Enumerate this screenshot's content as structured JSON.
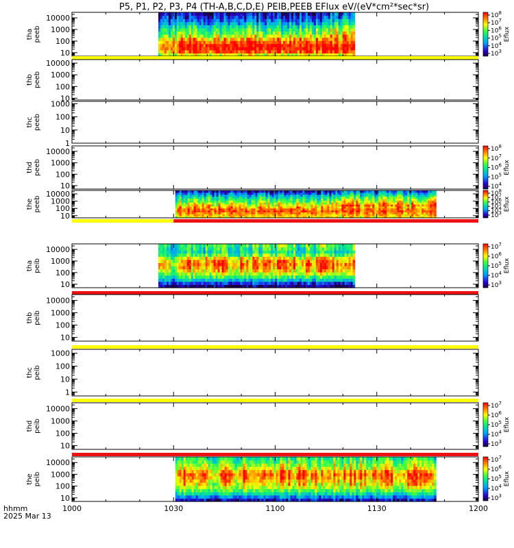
{
  "title": "P5, P1, P2, P3, P4 (TH-A,B,C,D,E) PEIB,PEEB EFlux eV/(eV*cm²*sec*sr)",
  "x_axis": {
    "range_minutes": [
      600,
      720
    ],
    "ticks": [
      {
        "label": "1000",
        "t": 600
      },
      {
        "label": "1030",
        "t": 630
      },
      {
        "label": "1100",
        "t": 660
      },
      {
        "label": "1130",
        "t": 690
      },
      {
        "label": "1200",
        "t": 720
      }
    ],
    "corner_label_1": "hhmm",
    "corner_label_2": "2025 Mar 13"
  },
  "colors": {
    "bar_red": "#ee1111",
    "bar_yellow": "#ffff00",
    "axis": "#000000"
  },
  "chart_data": [
    {
      "type": "heatmap",
      "probe": "tha",
      "species": "peeb",
      "ylabel": [
        "tha",
        "peeb"
      ],
      "ylog": true,
      "ylim": [
        5,
        30000
      ],
      "yticks": [
        "10",
        "100",
        "1000",
        "10000"
      ],
      "data_range_minutes": [
        625.5,
        683.5
      ],
      "profile": "electron_a",
      "colorbar": {
        "label": "Eflux",
        "exps": [
          "3",
          "4",
          "5",
          "6",
          "7",
          "8"
        ]
      },
      "bar": {
        "color": "yellow",
        "segments": [
          [
            600,
            720
          ]
        ]
      }
    },
    {
      "type": "heatmap",
      "probe": "thb",
      "species": "peeb",
      "ylabel": [
        "thb",
        "peeb"
      ],
      "ylog": true,
      "ylim": [
        7,
        20000
      ],
      "yticks": [
        "10",
        "100",
        "1000",
        "10000"
      ],
      "data_range_minutes": null,
      "profile": null,
      "colorbar": null,
      "bar": null
    },
    {
      "type": "heatmap",
      "probe": "thc",
      "species": "peeb",
      "ylabel": [
        "thc",
        "peeb"
      ],
      "ylog": true,
      "ylim": [
        1,
        1500
      ],
      "yticks": [
        "1",
        "10",
        "100",
        "1000"
      ],
      "data_range_minutes": null,
      "profile": null,
      "colorbar": null,
      "bar": null
    },
    {
      "type": "heatmap",
      "probe": "thd",
      "species": "peeb",
      "ylabel": [
        "thd",
        "peeb"
      ],
      "ylog": true,
      "ylim": [
        5,
        30000
      ],
      "yticks": [
        "10",
        "100",
        "1000",
        "10000"
      ],
      "data_range_minutes": null,
      "profile": null,
      "colorbar": {
        "label": "Eflux",
        "exps": [
          "4",
          "5",
          "6",
          "7",
          "8"
        ]
      },
      "bar": null
    },
    {
      "type": "heatmap",
      "probe": "the",
      "species": "peeb",
      "ylabel": [
        "the",
        "peeb"
      ],
      "ylog": true,
      "ylim": [
        5,
        30000
      ],
      "yticks": [
        "10",
        "100",
        "1000",
        "10000"
      ],
      "data_range_minutes": [
        630.5,
        707.5
      ],
      "profile": "electron_e",
      "colorbar": {
        "label": "Eflux",
        "exps": [
          "3",
          "4",
          "5",
          "6",
          "7",
          "8"
        ]
      },
      "bar": {
        "color": "yellow+red",
        "segments": [
          [
            600,
            630
          ],
          [
            630,
            720
          ]
        ]
      }
    },
    {
      "type": "heatmap",
      "probe": "tha",
      "species": "peib",
      "ylabel": [
        "tha",
        "peib"
      ],
      "ylog": true,
      "ylim": [
        5,
        30000
      ],
      "yticks": [
        "10",
        "100",
        "1000",
        "10000"
      ],
      "data_range_minutes": [
        625.5,
        683.5
      ],
      "profile": "ion_a",
      "colorbar": {
        "label": "Eflux",
        "exps": [
          "3",
          "4",
          "5",
          "6",
          "7"
        ]
      },
      "bar": {
        "color": "red",
        "segments": [
          [
            600,
            720
          ]
        ]
      }
    },
    {
      "type": "heatmap",
      "probe": "thb",
      "species": "peib",
      "ylabel": [
        "thb",
        "peib"
      ],
      "ylog": true,
      "ylim": [
        5,
        30000
      ],
      "yticks": [
        "10",
        "100",
        "1000",
        "10000"
      ],
      "data_range_minutes": null,
      "profile": null,
      "colorbar": null,
      "bar": {
        "color": "yellow",
        "segments": [
          [
            600,
            720
          ]
        ]
      }
    },
    {
      "type": "heatmap",
      "probe": "thc",
      "species": "peib",
      "ylabel": [
        "thc",
        "peib"
      ],
      "ylog": true,
      "ylim": [
        0.5,
        2000
      ],
      "yticks": [
        "1",
        "10",
        "100",
        "1000"
      ],
      "data_range_minutes": null,
      "profile": null,
      "colorbar": null,
      "bar": {
        "color": "yellow",
        "segments": [
          [
            600,
            720
          ]
        ]
      }
    },
    {
      "type": "heatmap",
      "probe": "thd",
      "species": "peib",
      "ylabel": [
        "thd",
        "peib"
      ],
      "ylog": true,
      "ylim": [
        5,
        30000
      ],
      "yticks": [
        "10",
        "100",
        "1000",
        "10000"
      ],
      "data_range_minutes": null,
      "profile": null,
      "colorbar": {
        "label": "Eflux",
        "exps": [
          "3",
          "4",
          "5",
          "6",
          "7"
        ]
      },
      "bar": {
        "color": "red",
        "segments": [
          [
            600,
            720
          ]
        ]
      }
    },
    {
      "type": "heatmap",
      "probe": "the",
      "species": "peib",
      "ylabel": [
        "the",
        "peib"
      ],
      "ylog": true,
      "ylim": [
        5,
        30000
      ],
      "yticks": [
        "10",
        "100",
        "1000",
        "10000"
      ],
      "data_range_minutes": [
        630.5,
        707.5
      ],
      "profile": "ion_e",
      "colorbar": {
        "label": "Eflux",
        "exps": [
          "3",
          "4",
          "5",
          "6",
          "7"
        ]
      },
      "bar": null
    }
  ]
}
